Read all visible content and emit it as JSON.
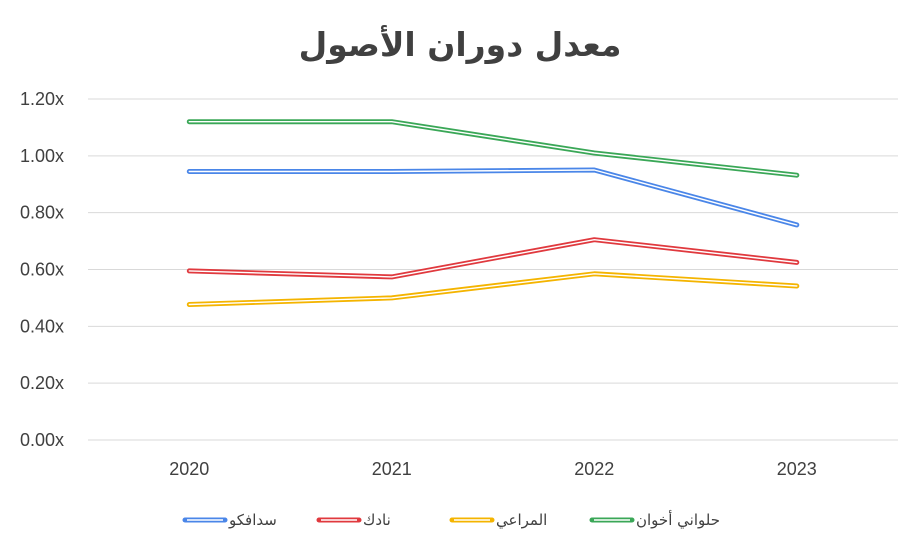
{
  "chart_data": {
    "type": "line",
    "title": "معدل دوران الأصول",
    "categories": [
      "2020",
      "2021",
      "2022",
      "2023"
    ],
    "y_ticks": [
      "0.00x",
      "0.20x",
      "0.40x",
      "0.60x",
      "0.80x",
      "1.00x",
      "1.20x"
    ],
    "ylim": [
      0,
      1.2
    ],
    "grid": true,
    "legend_position": "bottom",
    "series": [
      {
        "name": "سدافكو",
        "color": "#4a86e8",
        "values": [
          0.945,
          0.945,
          0.95,
          0.757
        ]
      },
      {
        "name": "نادك",
        "color": "#e0393e",
        "values": [
          0.595,
          0.574,
          0.705,
          0.625
        ]
      },
      {
        "name": "المراعي",
        "color": "#f4b400",
        "values": [
          0.477,
          0.5,
          0.585,
          0.542
        ]
      },
      {
        "name": "حلواني أخوان",
        "color": "#3aa757",
        "values": [
          1.12,
          1.12,
          1.01,
          0.932
        ]
      }
    ]
  }
}
